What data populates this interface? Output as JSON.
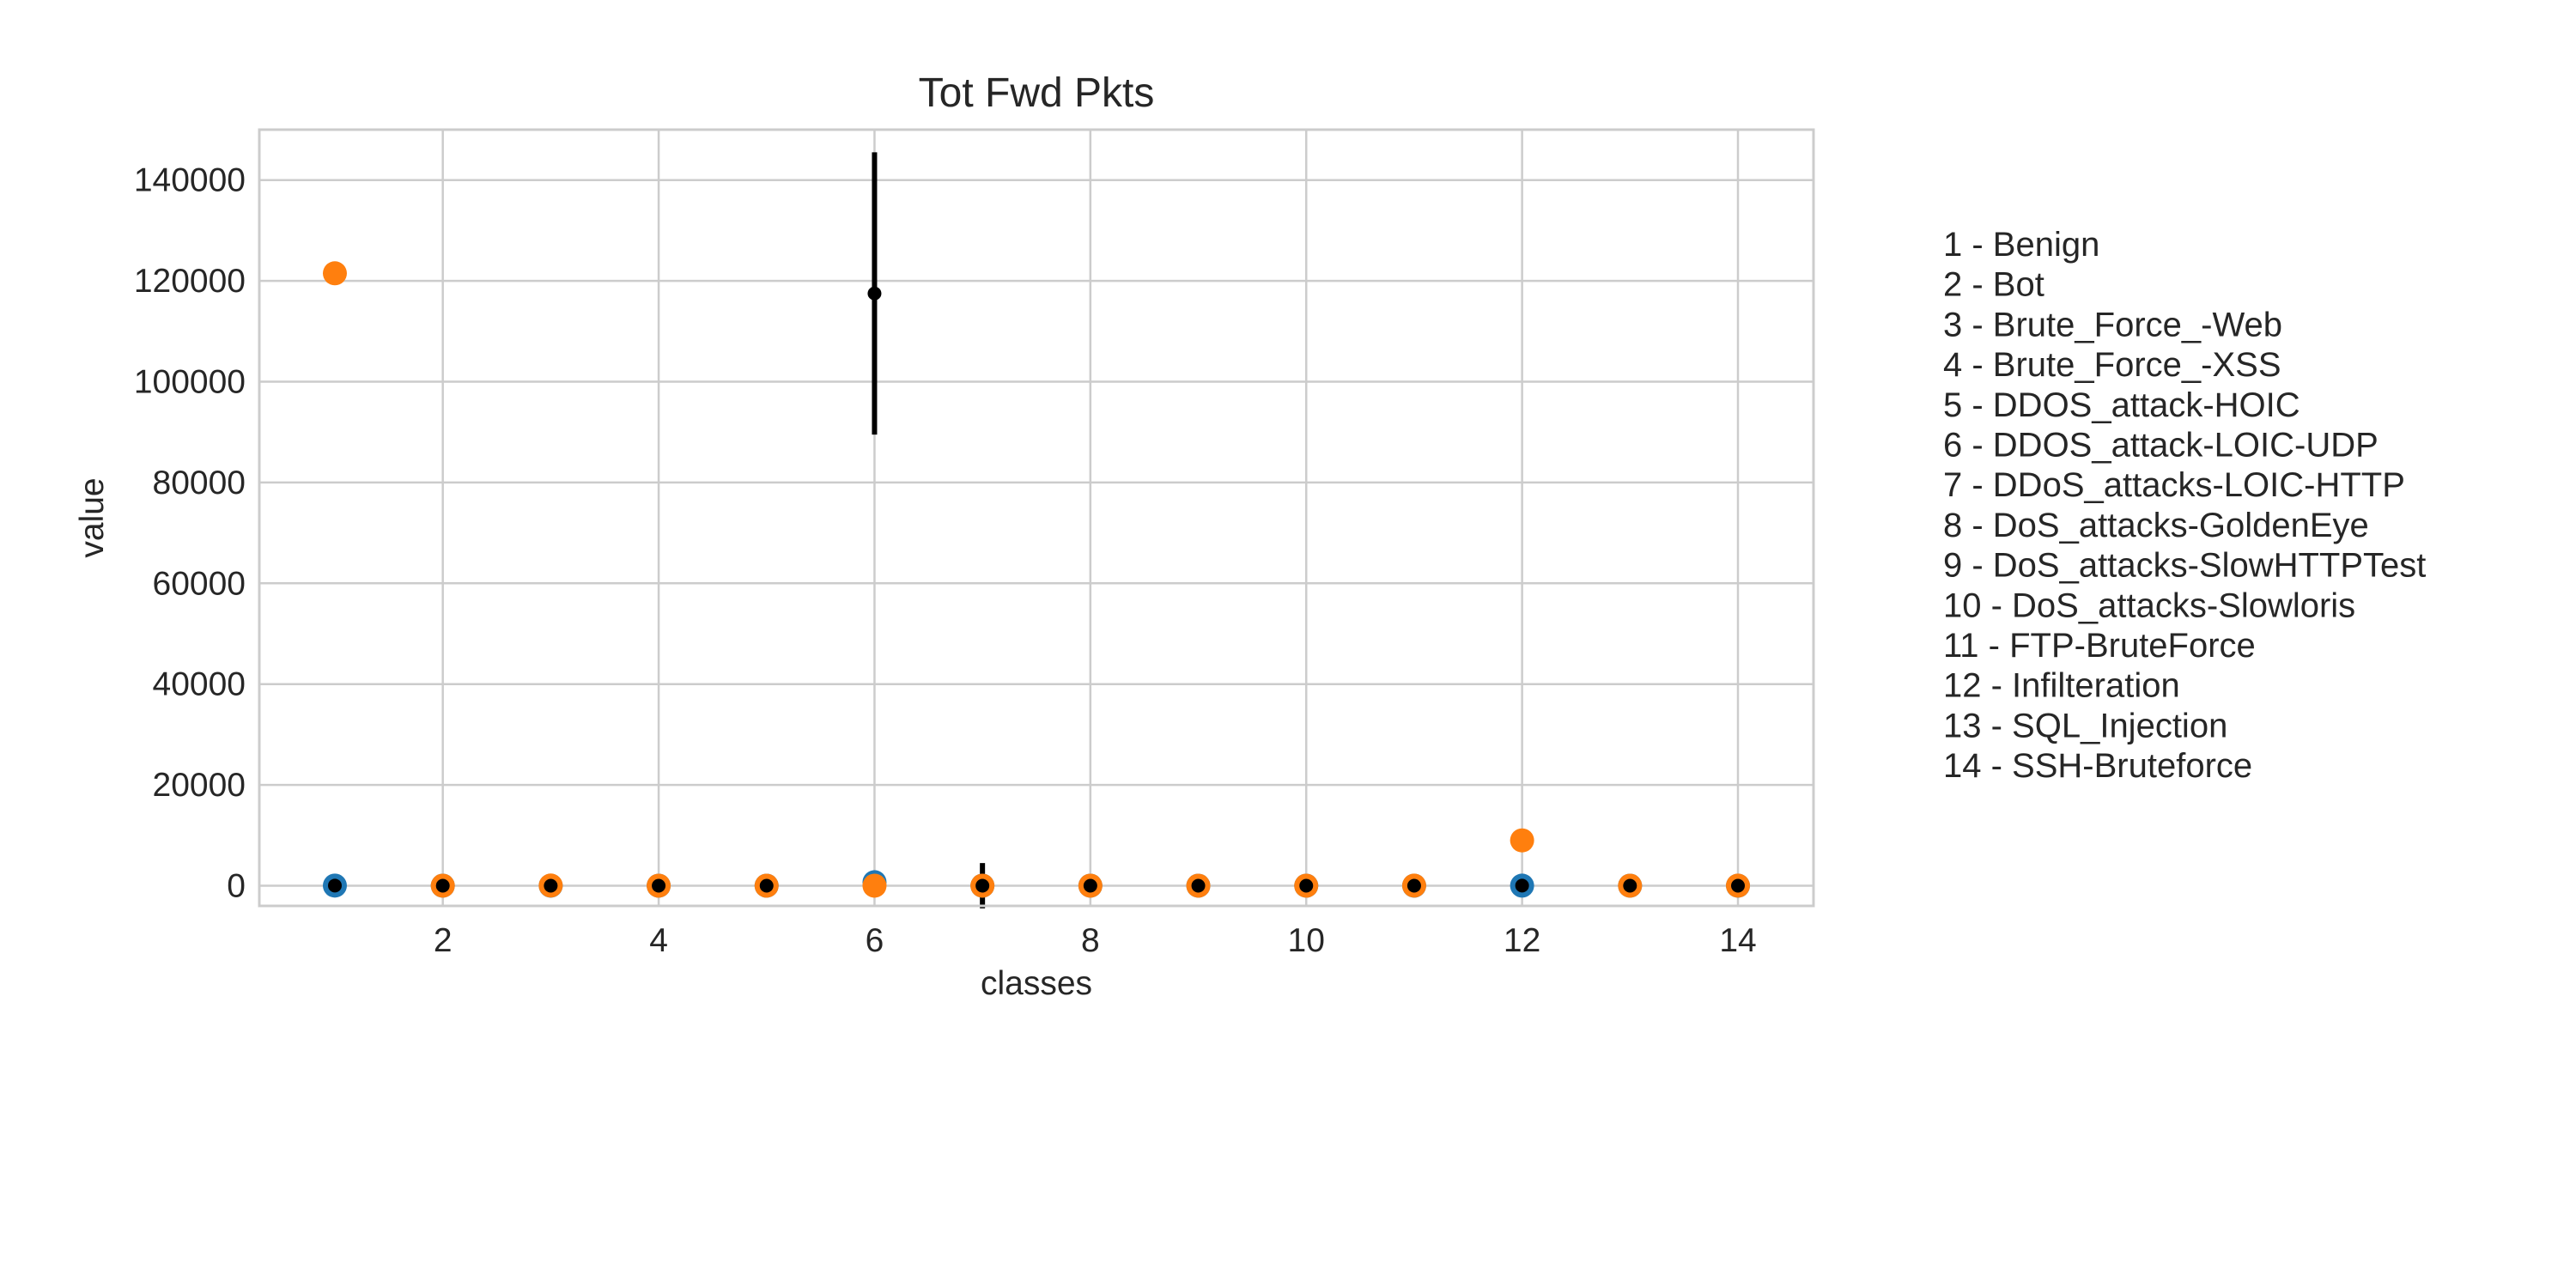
{
  "chart_data": {
    "type": "scatter",
    "title": "Tot Fwd Pkts",
    "xlabel": "classes",
    "ylabel": "value",
    "xlim": [
      0.3,
      14.7
    ],
    "ylim": [
      -4000,
      150000
    ],
    "grid": true,
    "x_ticks": [
      2,
      4,
      6,
      8,
      10,
      12,
      14
    ],
    "y_ticks": [
      0,
      20000,
      40000,
      60000,
      80000,
      100000,
      120000,
      140000
    ],
    "x": [
      1,
      2,
      3,
      4,
      5,
      6,
      7,
      8,
      9,
      10,
      11,
      12,
      13,
      14
    ],
    "series": [
      {
        "color": "#1f77b4",
        "values": [
          30,
          5,
          5,
          5,
          5,
          700,
          5,
          5,
          5,
          5,
          5,
          20,
          5,
          5
        ]
      },
      {
        "color": "#ff7f0e",
        "values": [
          121500,
          8,
          40,
          10,
          5,
          5,
          5,
          5,
          5,
          5,
          25,
          9000,
          5,
          15
        ]
      },
      {
        "color": "#000000",
        "values": [
          30,
          5,
          5,
          5,
          5,
          117500,
          5,
          5,
          5,
          5,
          5,
          20,
          5,
          5
        ],
        "error": [
          0,
          0,
          0,
          0,
          0,
          28000,
          4500,
          0,
          0,
          0,
          0,
          0,
          0,
          0
        ]
      }
    ],
    "legend_placement": "right",
    "legend_entries": [
      "1 - Benign",
      "2 - Bot",
      "3 - Brute_Force_-Web",
      "4 - Brute_Force_-XSS",
      "5 - DDOS_attack-HOIC",
      "6 - DDOS_attack-LOIC-UDP",
      "7 - DDoS_attacks-LOIC-HTTP",
      "8 - DoS_attacks-GoldenEye",
      "9 - DoS_attacks-SlowHTTPTest",
      "10 - DoS_attacks-Slowloris",
      "11 - FTP-BruteForce",
      "12 - Infilteration",
      "13 - SQL_Injection",
      "14 - SSH-Bruteforce"
    ]
  }
}
